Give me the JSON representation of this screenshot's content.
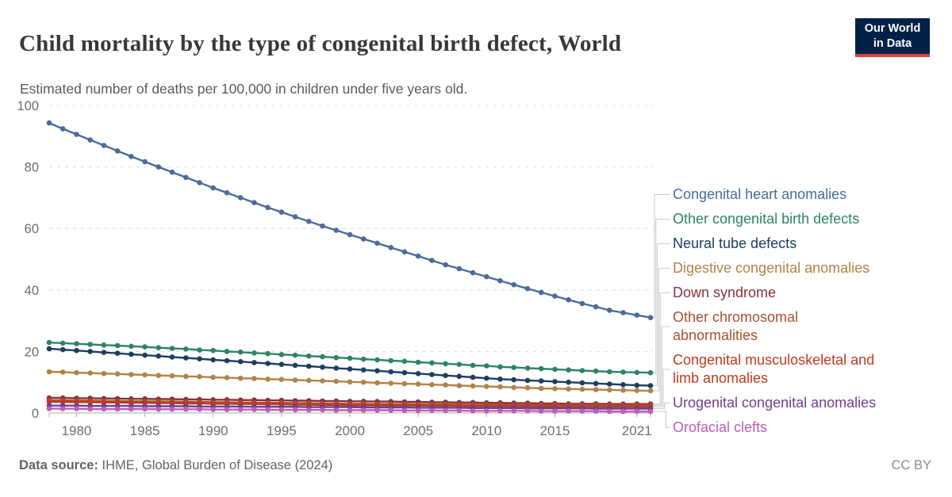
{
  "header": {
    "title": "Child mortality by the type of congenital birth defect, World",
    "subtitle": "Estimated number of deaths per 100,000 in children under five years old."
  },
  "logo": {
    "line1": "Our World",
    "line2": "in Data",
    "bg": "#002147",
    "accent": "#d7413d"
  },
  "footer": {
    "source_label": "Data source:",
    "source_text": " IHME, Global Burden of Disease (2024)",
    "license": "CC BY"
  },
  "theme": {
    "grid_color": "#dcdcdc",
    "axis_color": "#ababab",
    "tick_label_color": "#6e6e6e",
    "connector_color": "#c9c9c9"
  },
  "chart_data": {
    "type": "line",
    "title": "Child mortality by the type of congenital birth defect, World",
    "subtitle": "Estimated number of deaths per 100,000 in children under five years old.",
    "xlabel": "",
    "ylabel": "",
    "xlim": [
      1978,
      2022
    ],
    "ylim": [
      0,
      100
    ],
    "grid": "horizontal-dashed",
    "legend_position": "right",
    "xticks": [
      1980,
      1985,
      1990,
      1995,
      2000,
      2005,
      2010,
      2015,
      2021
    ],
    "yticks": [
      0,
      20,
      40,
      60,
      80,
      100
    ],
    "x": [
      1978,
      1979,
      1980,
      1981,
      1982,
      1983,
      1984,
      1985,
      1986,
      1987,
      1988,
      1989,
      1990,
      1991,
      1992,
      1993,
      1994,
      1995,
      1996,
      1997,
      1998,
      1999,
      2000,
      2001,
      2002,
      2003,
      2004,
      2005,
      2006,
      2007,
      2008,
      2009,
      2010,
      2011,
      2012,
      2013,
      2014,
      2015,
      2016,
      2017,
      2018,
      2019,
      2020,
      2021,
      2022
    ],
    "series": [
      {
        "id": "congenital-heart-anomalies",
        "name": "Congenital heart anomalies",
        "color": "#4C6A9C",
        "values": [
          94.3,
          92.4,
          90.6,
          88.8,
          87.0,
          85.2,
          83.4,
          81.7,
          80.0,
          78.3,
          76.6,
          74.9,
          73.2,
          71.6,
          70.0,
          68.4,
          66.8,
          65.3,
          63.8,
          62.3,
          60.8,
          59.4,
          58.0,
          56.6,
          55.2,
          53.8,
          52.4,
          51.0,
          49.6,
          48.2,
          46.9,
          45.6,
          44.3,
          43.0,
          41.7,
          40.4,
          39.2,
          38.0,
          36.8,
          35.6,
          34.5,
          33.4,
          32.6,
          31.8,
          31.0
        ]
      },
      {
        "id": "other-congenital-birth-defects",
        "name": "Other congenital birth defects",
        "color": "#2C8465",
        "values": [
          22.9,
          22.7,
          22.5,
          22.3,
          22.1,
          21.9,
          21.7,
          21.5,
          21.2,
          21.0,
          20.8,
          20.5,
          20.3,
          20.0,
          19.8,
          19.5,
          19.3,
          19.0,
          18.8,
          18.5,
          18.3,
          18.0,
          17.8,
          17.5,
          17.3,
          17.0,
          16.8,
          16.5,
          16.3,
          16.0,
          15.8,
          15.5,
          15.3,
          15.0,
          14.8,
          14.6,
          14.4,
          14.2,
          14.0,
          13.8,
          13.6,
          13.4,
          13.3,
          13.2,
          13.1
        ]
      },
      {
        "id": "neural-tube-defects",
        "name": "Neural tube defects",
        "color": "#1D3D63",
        "values": [
          20.9,
          20.6,
          20.3,
          20.0,
          19.7,
          19.4,
          19.1,
          18.8,
          18.5,
          18.2,
          17.9,
          17.6,
          17.3,
          17.0,
          16.7,
          16.4,
          16.1,
          15.8,
          15.5,
          15.2,
          14.9,
          14.6,
          14.3,
          14.0,
          13.7,
          13.4,
          13.1,
          12.8,
          12.5,
          12.2,
          11.9,
          11.6,
          11.3,
          11.0,
          10.8,
          10.6,
          10.4,
          10.2,
          10.0,
          9.8,
          9.6,
          9.4,
          9.2,
          9.0,
          8.9
        ]
      },
      {
        "id": "digestive-congenital-anomalies",
        "name": "Digestive congenital anomalies",
        "color": "#B08447",
        "values": [
          13.4,
          13.3,
          13.1,
          13.0,
          12.8,
          12.7,
          12.5,
          12.4,
          12.2,
          12.1,
          11.9,
          11.8,
          11.6,
          11.5,
          11.3,
          11.2,
          11.0,
          10.9,
          10.7,
          10.6,
          10.4,
          10.3,
          10.1,
          10.0,
          9.8,
          9.7,
          9.5,
          9.4,
          9.2,
          9.1,
          8.9,
          8.8,
          8.6,
          8.5,
          8.3,
          8.2,
          8.0,
          7.9,
          7.8,
          7.7,
          7.6,
          7.5,
          7.4,
          7.3,
          7.2
        ]
      },
      {
        "id": "down-syndrome",
        "name": "Down syndrome",
        "color": "#883039",
        "values": [
          4.9,
          4.9,
          4.8,
          4.8,
          4.7,
          4.7,
          4.6,
          4.6,
          4.5,
          4.5,
          4.4,
          4.4,
          4.3,
          4.3,
          4.2,
          4.2,
          4.1,
          4.1,
          4.0,
          4.0,
          3.9,
          3.9,
          3.8,
          3.8,
          3.7,
          3.7,
          3.6,
          3.6,
          3.5,
          3.5,
          3.4,
          3.4,
          3.3,
          3.3,
          3.2,
          3.2,
          3.1,
          3.1,
          3.0,
          3.0,
          3.0,
          2.9,
          2.9,
          2.9,
          2.9
        ]
      },
      {
        "id": "other-chromosomal-abnormalities",
        "name": "Other chromosomal abnormalities",
        "color": "#A8512F",
        "values": [
          4.1,
          4.1,
          4.0,
          4.0,
          3.9,
          3.9,
          3.8,
          3.8,
          3.7,
          3.7,
          3.6,
          3.6,
          3.5,
          3.5,
          3.4,
          3.4,
          3.3,
          3.3,
          3.2,
          3.2,
          3.1,
          3.1,
          3.0,
          3.0,
          2.9,
          2.9,
          2.9,
          2.8,
          2.8,
          2.8,
          2.7,
          2.7,
          2.7,
          2.7,
          2.6,
          2.6,
          2.6,
          2.6,
          2.6,
          2.5,
          2.5,
          2.5,
          2.5,
          2.5,
          2.5
        ]
      },
      {
        "id": "congenital-musculoskeletal-and-limb-anomalies",
        "name": "Congenital musculoskeletal and limb anomalies",
        "color": "#BD3B1D",
        "values": [
          3.6,
          3.6,
          3.5,
          3.5,
          3.4,
          3.4,
          3.3,
          3.3,
          3.2,
          3.2,
          3.1,
          3.1,
          3.0,
          3.0,
          2.9,
          2.9,
          2.8,
          2.8,
          2.7,
          2.7,
          2.6,
          2.6,
          2.5,
          2.5,
          2.5,
          2.4,
          2.4,
          2.4,
          2.3,
          2.3,
          2.3,
          2.2,
          2.2,
          2.2,
          2.2,
          2.1,
          2.1,
          2.1,
          2.1,
          2.1,
          2.0,
          2.0,
          2.0,
          2.0,
          2.0
        ]
      },
      {
        "id": "urogenital-congenital-anomalies",
        "name": "Urogenital congenital anomalies",
        "color": "#6D3E91",
        "values": [
          2.4,
          2.4,
          2.4,
          2.3,
          2.3,
          2.3,
          2.3,
          2.2,
          2.2,
          2.2,
          2.2,
          2.1,
          2.1,
          2.1,
          2.1,
          2.0,
          2.0,
          2.0,
          2.0,
          1.9,
          1.9,
          1.9,
          1.9,
          1.8,
          1.8,
          1.8,
          1.8,
          1.7,
          1.7,
          1.7,
          1.7,
          1.6,
          1.6,
          1.6,
          1.6,
          1.5,
          1.5,
          1.5,
          1.5,
          1.5,
          1.4,
          1.4,
          1.4,
          1.4,
          1.4
        ]
      },
      {
        "id": "orofacial-clefts",
        "name": "Orofacial clefts",
        "color": "#BC5FB4",
        "values": [
          1.4,
          1.4,
          1.4,
          1.3,
          1.3,
          1.3,
          1.3,
          1.3,
          1.2,
          1.2,
          1.2,
          1.2,
          1.1,
          1.1,
          1.1,
          1.1,
          1.0,
          1.0,
          1.0,
          1.0,
          1.0,
          0.9,
          0.9,
          0.9,
          0.9,
          0.9,
          0.8,
          0.8,
          0.8,
          0.8,
          0.8,
          0.7,
          0.7,
          0.7,
          0.7,
          0.7,
          0.6,
          0.6,
          0.6,
          0.6,
          0.6,
          0.5,
          0.5,
          0.5,
          0.5
        ]
      }
    ]
  }
}
